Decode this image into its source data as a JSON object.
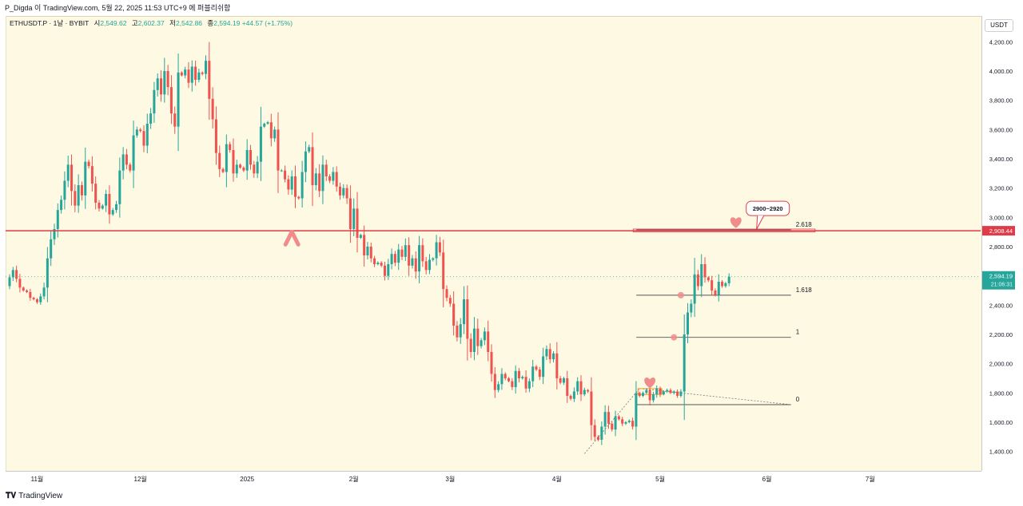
{
  "header": {
    "attribution": "P_Digda 이 TradingView.com, 5월 22, 2025 11:53 UTC+9 에 퍼블리쉬함"
  },
  "legend": {
    "symbol": "ETHUSDT.P · 1날 · BYBIT",
    "open_label": "시",
    "open": "2,549.62",
    "high_label": "고",
    "high": "2,602.37",
    "low_label": "저",
    "low": "2,542.86",
    "close_label": "종",
    "close": "2,594.19",
    "change": "+44.57 (+1.75%)"
  },
  "price_axis": {
    "currency": "USDT",
    "ticks": [
      "4,200.00",
      "4,000.00",
      "3,800.00",
      "3,600.00",
      "3,400.00",
      "3,200.00",
      "3,000.00",
      "2,800.00",
      "2,400.00",
      "2,200.00",
      "2,000.00",
      "1,800.00",
      "1,600.00",
      "1,400.00"
    ],
    "resistance_label": "2,908.44",
    "current_price_label": "2,594.19",
    "countdown": "21:06:31"
  },
  "time_axis": {
    "labels": [
      "11월",
      "12월",
      "2025",
      "2월",
      "3월",
      "4월",
      "5월",
      "6월",
      "7월"
    ]
  },
  "annotations": {
    "callout": "2900~2920",
    "fib_2618": "2.618",
    "fib_1618": "1.618",
    "fib_1": "1",
    "fib_0": "0"
  },
  "footer": {
    "brand": "TradingView"
  },
  "chart_data": {
    "type": "candlestick",
    "title": "ETHUSDT.P · 1날 · BYBIT",
    "ylim": [
      1300,
      4300
    ],
    "x_range": [
      "2024-10-24",
      "2025-07-31"
    ],
    "x_labels": [
      {
        "date": "2024-11-01",
        "label": "11월"
      },
      {
        "date": "2024-12-01",
        "label": "12월"
      },
      {
        "date": "2025-01-01",
        "label": "2025"
      },
      {
        "date": "2025-02-01",
        "label": "2월"
      },
      {
        "date": "2025-03-01",
        "label": "3월"
      },
      {
        "date": "2025-04-01",
        "label": "4월"
      },
      {
        "date": "2025-05-01",
        "label": "5월"
      },
      {
        "date": "2025-06-01",
        "label": "6월"
      },
      {
        "date": "2025-07-01",
        "label": "7월"
      }
    ],
    "start_date": "2024-10-24",
    "first_open": 2530,
    "closes": [
      2590,
      2640,
      2580,
      2520,
      2500,
      2490,
      2450,
      2440,
      2420,
      2460,
      2520,
      2720,
      2850,
      2920,
      3050,
      3120,
      3250,
      3360,
      3180,
      3080,
      3220,
      3150,
      3380,
      3350,
      3230,
      3100,
      3060,
      3080,
      3160,
      3020,
      3050,
      3090,
      3320,
      3430,
      3360,
      3320,
      3560,
      3600,
      3590,
      3490,
      3640,
      3710,
      3870,
      3950,
      3840,
      4000,
      3890,
      3710,
      3620,
      3990,
      3970,
      4010,
      3920,
      4030,
      3940,
      3990,
      3980,
      4070,
      3810,
      3670,
      3440,
      3330,
      3310,
      3500,
      3460,
      3300,
      3360,
      3340,
      3320,
      3460,
      3360,
      3300,
      3380,
      3620,
      3640,
      3650,
      3540,
      3600,
      3320,
      3320,
      3260,
      3190,
      3280,
      3140,
      3130,
      3310,
      3450,
      3480,
      3220,
      3300,
      3180,
      3360,
      3280,
      3250,
      3310,
      3210,
      3150,
      3200,
      3130,
      2920,
      3060,
      2860,
      2880,
      2740,
      2800,
      2720,
      2680,
      2690,
      2670,
      2600,
      2680,
      2750,
      2690,
      2780,
      2730,
      2810,
      2670,
      2720,
      2630,
      2810,
      2700,
      2640,
      2710,
      2720,
      2830,
      2760,
      2510,
      2450,
      2410,
      2260,
      2180,
      2270,
      2440,
      2170,
      2080,
      2240,
      2120,
      2160,
      2220,
      2080,
      1930,
      1820,
      1860,
      1930,
      1900,
      1880,
      1840,
      1950,
      1900,
      1910,
      1830,
      1880,
      1980,
      1960,
      1910,
      2050,
      2100,
      2030,
      2070,
      1900,
      1870,
      1900,
      1780,
      1760,
      1810,
      1880,
      1790,
      1820,
      1810,
      1580,
      1500,
      1480,
      1570,
      1670,
      1590,
      1550,
      1640,
      1620,
      1590,
      1600,
      1610,
      1570,
      1800,
      1780,
      1800,
      1820,
      1750,
      1790,
      1830,
      1790,
      1810,
      1820,
      1800,
      1810,
      1780,
      1810,
      2200,
      2350,
      2410,
      2610,
      2530,
      2680,
      2590,
      2570,
      2500,
      2470,
      2560,
      2530,
      2549.62,
      2594.19
    ],
    "current_date": "2025-05-22",
    "resistance": {
      "price": 2908.44,
      "label": "2,908.44",
      "zone": [
        2900,
        2920
      ],
      "zone_label": "2900~2920"
    },
    "fibonacci": {
      "anchor_low": {
        "date": "2025-04-09",
        "price": 1385
      },
      "anchor_high": {
        "date": "2025-04-25",
        "price": 1830
      },
      "base_price": 1720,
      "levels": [
        {
          "ratio": "0",
          "price": 1720
        },
        {
          "ratio": "1",
          "price": 2180
        },
        {
          "ratio": "1.618",
          "price": 2468
        },
        {
          "ratio": "2.618",
          "price": 2915
        }
      ],
      "extends_to": "2025-06-08"
    },
    "markers": [
      {
        "type": "arrow-up",
        "date": "2025-01-14",
        "price": 2880
      },
      {
        "type": "heart",
        "date": "2025-04-28",
        "price": 1865
      },
      {
        "type": "heart",
        "date": "2025-05-23",
        "price": 2960
      }
    ],
    "colors": {
      "up": "#26a69a",
      "down": "#ef5350",
      "background": "#fdf9e2",
      "resistance": "#e03b48",
      "marker": "#f08c8c"
    }
  }
}
